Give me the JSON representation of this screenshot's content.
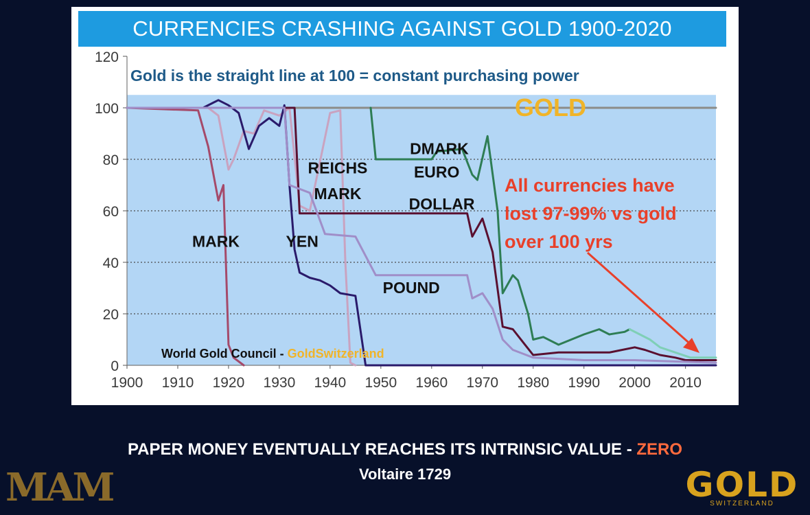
{
  "slide": {
    "quote_line1_main": "PAPER MONEY EVENTUALLY REACHES ITS INTRINSIC VALUE - ",
    "quote_line1_highlight": "ZERO",
    "quote_line2": "Voltaire 1729",
    "logo_left": "MAM",
    "logo_right": "GOLD",
    "logo_right_sub": "SWITZERLAND"
  },
  "colors": {
    "banner": "#1e9be0",
    "plot_bg": "#b3d6f5",
    "gold_line": "#8c8c88",
    "gold_label": "#f0b429",
    "red_text": "#e8402a",
    "mark": "#a54a6a",
    "reichsmark": "#c9a3c0",
    "yen": "#2a1a6a",
    "dollar": "#5a1030",
    "pound": "#a08ec8",
    "dmark": "#2e7d54",
    "euro": "#7fcfb6"
  },
  "chart_data": {
    "type": "line",
    "title": "CURRENCIES CRASHING AGAINST GOLD 1900-2020",
    "subtitle": "Gold is the straight line at 100 = constant purchasing power",
    "xlabel": "",
    "ylabel": "",
    "xlim": [
      1900,
      2016
    ],
    "ylim": [
      0,
      120
    ],
    "x_ticks": [
      1900,
      1910,
      1920,
      1930,
      1940,
      1950,
      1960,
      1970,
      1980,
      1990,
      2000,
      2010
    ],
    "y_ticks": [
      0,
      20,
      40,
      60,
      80,
      100,
      120
    ],
    "grid": "horizontal dotted",
    "annotation": {
      "line1": "All currencies have",
      "line2": "lost 97-99% vs gold",
      "line3": "over 100 yrs"
    },
    "source": "World Gold Council - ",
    "source_highlight": "GoldSwitzerland",
    "series": [
      {
        "name": "GOLD",
        "color_key": "gold_line",
        "points": [
          [
            1900,
            100
          ],
          [
            2016,
            100
          ]
        ]
      },
      {
        "name": "MARK",
        "color_key": "mark",
        "points": [
          [
            1900,
            100
          ],
          [
            1914,
            99
          ],
          [
            1916,
            85
          ],
          [
            1918,
            64
          ],
          [
            1919,
            70
          ],
          [
            1920,
            8
          ],
          [
            1921,
            3
          ],
          [
            1923,
            0
          ]
        ]
      },
      {
        "name": "REICHS\nMARK",
        "color_key": "reichsmark",
        "points": [
          [
            1916,
            100
          ],
          [
            1918,
            97
          ],
          [
            1920,
            76
          ],
          [
            1921,
            80
          ],
          [
            1923,
            91
          ],
          [
            1925,
            90
          ],
          [
            1927,
            99
          ],
          [
            1930,
            97
          ],
          [
            1932,
            100
          ],
          [
            1934,
            62
          ],
          [
            1936,
            60
          ],
          [
            1940,
            98
          ],
          [
            1942,
            99
          ],
          [
            1943,
            40
          ],
          [
            1944,
            1
          ],
          [
            1945,
            0
          ]
        ]
      },
      {
        "name": "YEN",
        "color_key": "yen",
        "points": [
          [
            1900,
            100
          ],
          [
            1915,
            100
          ],
          [
            1917,
            102
          ],
          [
            1918,
            103
          ],
          [
            1920,
            101
          ],
          [
            1922,
            98
          ],
          [
            1924,
            84
          ],
          [
            1926,
            93
          ],
          [
            1928,
            96
          ],
          [
            1930,
            93
          ],
          [
            1931,
            101
          ],
          [
            1932,
            70
          ],
          [
            1933,
            45
          ],
          [
            1934,
            36
          ],
          [
            1936,
            34
          ],
          [
            1938,
            33
          ],
          [
            1940,
            31
          ],
          [
            1942,
            28
          ],
          [
            1945,
            27
          ],
          [
            1947,
            0
          ],
          [
            1950,
            0
          ],
          [
            2016,
            0
          ]
        ]
      },
      {
        "name": "DOLLAR",
        "color_key": "dollar",
        "points": [
          [
            1900,
            100
          ],
          [
            1933,
            100
          ],
          [
            1934,
            59
          ],
          [
            1967,
            59
          ],
          [
            1968,
            50
          ],
          [
            1970,
            57
          ],
          [
            1972,
            44
          ],
          [
            1974,
            15
          ],
          [
            1976,
            14
          ],
          [
            1978,
            9
          ],
          [
            1980,
            4
          ],
          [
            1985,
            5
          ],
          [
            1990,
            5
          ],
          [
            1995,
            5
          ],
          [
            2000,
            7
          ],
          [
            2002,
            6
          ],
          [
            2005,
            4
          ],
          [
            2008,
            3
          ],
          [
            2010,
            2
          ],
          [
            2016,
            2
          ]
        ]
      },
      {
        "name": "POUND",
        "color_key": "pound",
        "points": [
          [
            1900,
            100
          ],
          [
            1931,
            100
          ],
          [
            1932,
            70
          ],
          [
            1936,
            67
          ],
          [
            1939,
            51
          ],
          [
            1945,
            50
          ],
          [
            1949,
            35
          ],
          [
            1967,
            35
          ],
          [
            1968,
            26
          ],
          [
            1970,
            28
          ],
          [
            1972,
            22
          ],
          [
            1974,
            10
          ],
          [
            1976,
            6
          ],
          [
            1980,
            3
          ],
          [
            1990,
            2
          ],
          [
            2000,
            2
          ],
          [
            2016,
            1
          ]
        ]
      },
      {
        "name": "DMARK",
        "color_key": "dmark",
        "points": [
          [
            1948,
            100
          ],
          [
            1949,
            80
          ],
          [
            1960,
            80
          ],
          [
            1961,
            83
          ],
          [
            1966,
            84
          ],
          [
            1968,
            74
          ],
          [
            1969,
            72
          ],
          [
            1971,
            89
          ],
          [
            1973,
            60
          ],
          [
            1974,
            28
          ],
          [
            1976,
            35
          ],
          [
            1977,
            33
          ],
          [
            1979,
            20
          ],
          [
            1980,
            10
          ],
          [
            1982,
            11
          ],
          [
            1985,
            8
          ],
          [
            1990,
            12
          ],
          [
            1993,
            14
          ],
          [
            1995,
            12
          ],
          [
            1998,
            13
          ],
          [
            1999,
            14
          ]
        ]
      },
      {
        "name": "EURO",
        "color_key": "euro",
        "points": [
          [
            1999,
            14
          ],
          [
            2001,
            12
          ],
          [
            2003,
            10
          ],
          [
            2005,
            7
          ],
          [
            2008,
            5
          ],
          [
            2011,
            3
          ],
          [
            2014,
            3
          ],
          [
            2016,
            3
          ]
        ]
      }
    ],
    "labels": [
      {
        "text": "MARK",
        "x": 1917.5,
        "y": 46
      },
      {
        "text": "YEN",
        "x": 1934.5,
        "y": 46
      },
      {
        "text": "REICHS",
        "x": 1941.5,
        "y": 74.5
      },
      {
        "text": "MARK",
        "x": 1941.5,
        "y": 64.5
      },
      {
        "text": "DMARK",
        "x": 1961.5,
        "y": 82
      },
      {
        "text": "EURO",
        "x": 1961,
        "y": 73
      },
      {
        "text": "DOLLAR",
        "x": 1962,
        "y": 60.5
      },
      {
        "text": "POUND",
        "x": 1956,
        "y": 28
      }
    ]
  }
}
